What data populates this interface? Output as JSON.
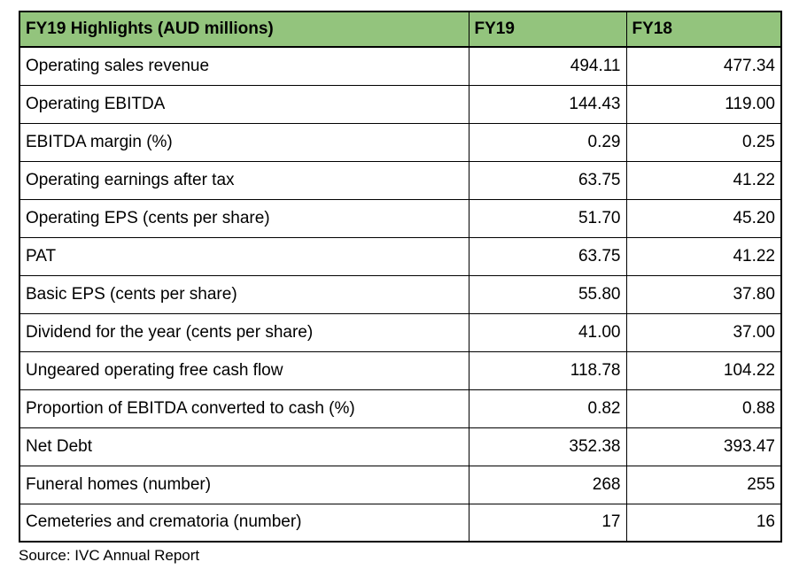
{
  "colors": {
    "header_bg": "#93C47D",
    "border": "#000000",
    "text": "#000000"
  },
  "table": {
    "headers": {
      "label": "FY19 Highlights (AUD millions)",
      "fy19": "FY19",
      "fy18": "FY18"
    },
    "rows": [
      {
        "label": "Operating sales revenue",
        "fy19": "494.11",
        "fy18": "477.34"
      },
      {
        "label": "Operating EBITDA",
        "fy19": "144.43",
        "fy18": "119.00"
      },
      {
        "label": "EBITDA margin (%)",
        "fy19": "0.29",
        "fy18": "0.25"
      },
      {
        "label": "Operating earnings after tax",
        "fy19": "63.75",
        "fy18": "41.22"
      },
      {
        "label": "Operating EPS (cents per share)",
        "fy19": "51.70",
        "fy18": "45.20"
      },
      {
        "label": "PAT",
        "fy19": "63.75",
        "fy18": "41.22"
      },
      {
        "label": "Basic EPS (cents per share)",
        "fy19": "55.80",
        "fy18": "37.80"
      },
      {
        "label": "Dividend for the year (cents per share)",
        "fy19": "41.00",
        "fy18": "37.00"
      },
      {
        "label": "Ungeared operating free cash flow",
        "fy19": "118.78",
        "fy18": "104.22"
      },
      {
        "label": "Proportion of EBITDA converted to cash (%)",
        "fy19": "0.82",
        "fy18": "0.88"
      },
      {
        "label": "Net Debt",
        "fy19": "352.38",
        "fy18": "393.47"
      },
      {
        "label": "Funeral homes (number)",
        "fy19": "268",
        "fy18": "255"
      },
      {
        "label": "Cemeteries and crematoria (number)",
        "fy19": "17",
        "fy18": "16"
      }
    ]
  },
  "source": "Source: IVC Annual Report",
  "chart_data": {
    "type": "table",
    "title": "FY19 Highlights (AUD millions)",
    "columns": [
      "FY19 Highlights (AUD millions)",
      "FY19",
      "FY18"
    ],
    "rows": [
      {
        "metric": "Operating sales revenue",
        "FY19": 494.11,
        "FY18": 477.34
      },
      {
        "metric": "Operating EBITDA",
        "FY19": 144.43,
        "FY18": 119.0
      },
      {
        "metric": "EBITDA margin (%)",
        "FY19": 0.29,
        "FY18": 0.25
      },
      {
        "metric": "Operating earnings after tax",
        "FY19": 63.75,
        "FY18": 41.22
      },
      {
        "metric": "Operating EPS (cents per share)",
        "FY19": 51.7,
        "FY18": 45.2
      },
      {
        "metric": "PAT",
        "FY19": 63.75,
        "FY18": 41.22
      },
      {
        "metric": "Basic EPS (cents per share)",
        "FY19": 55.8,
        "FY18": 37.8
      },
      {
        "metric": "Dividend for the year (cents per share)",
        "FY19": 41.0,
        "FY18": 37.0
      },
      {
        "metric": "Ungeared operating free cash flow",
        "FY19": 118.78,
        "FY18": 104.22
      },
      {
        "metric": "Proportion of EBITDA converted to cash (%)",
        "FY19": 0.82,
        "FY18": 0.88
      },
      {
        "metric": "Net Debt",
        "FY19": 352.38,
        "FY18": 393.47
      },
      {
        "metric": "Funeral homes (number)",
        "FY19": 268,
        "FY18": 255
      },
      {
        "metric": "Cemeteries and crematoria (number)",
        "FY19": 17,
        "FY18": 16
      }
    ],
    "source": "Source: IVC Annual Report",
    "header_background": "#93C47D"
  }
}
